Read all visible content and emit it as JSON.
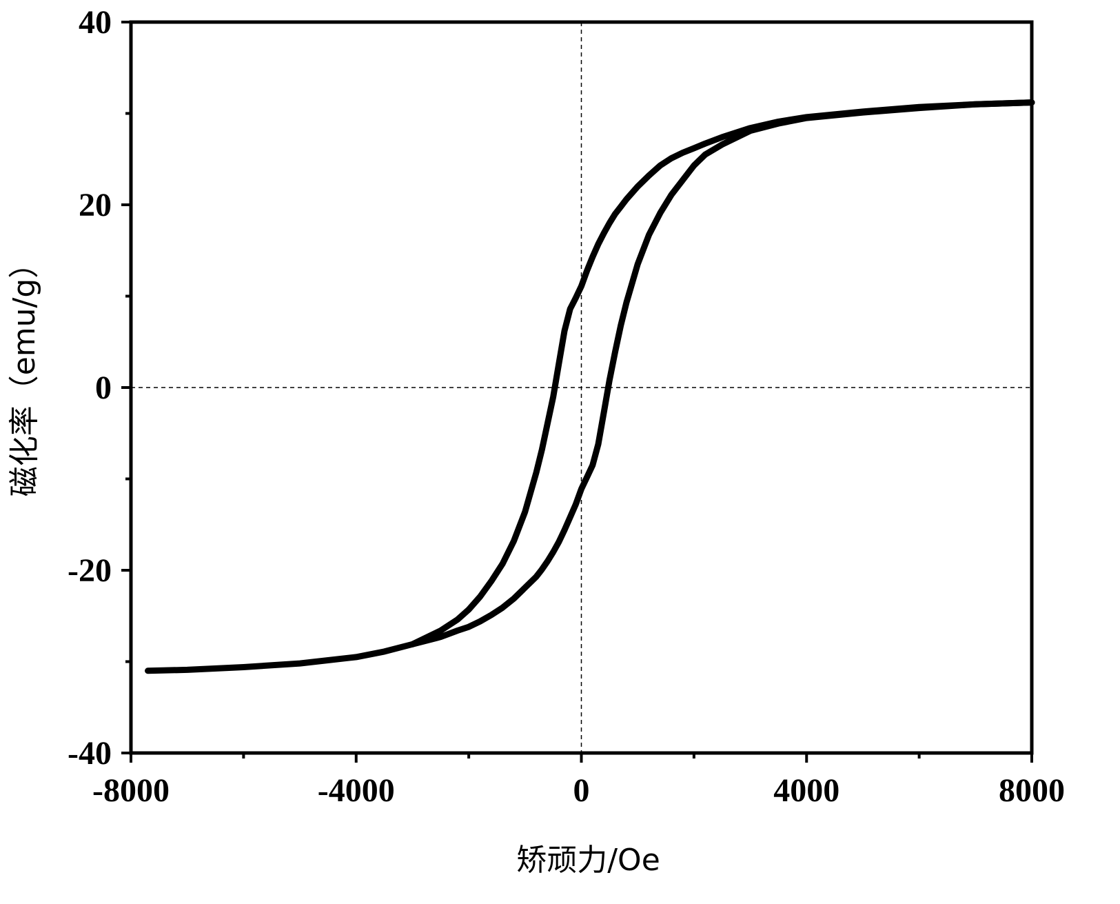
{
  "chart_data": {
    "type": "line",
    "title": "",
    "xlabel": "矫顽力/Oe",
    "ylabel": "磁化率（emu/g）",
    "xlim": [
      -8000,
      8000
    ],
    "ylim": [
      -40,
      40
    ],
    "x_ticks": [
      -8000,
      -4000,
      0,
      4000,
      8000
    ],
    "x_tick_labels": [
      "-8000",
      "-4000",
      "0",
      "4000",
      "8000"
    ],
    "y_ticks": [
      -40,
      -20,
      0,
      20,
      40
    ],
    "y_tick_labels": [
      "-40",
      "-20",
      "0",
      "20",
      "40"
    ],
    "x_minor_ticks": [
      -6000,
      -2000,
      2000,
      6000
    ],
    "y_minor_ticks": [
      -30,
      -10,
      10,
      30
    ],
    "reference_lines": {
      "x": 0,
      "y": 0,
      "style": "dashed"
    },
    "legend": "none",
    "series": [
      {
        "x": [
          -7700,
          -7000,
          -6000,
          -5000,
          -4000,
          -3500,
          -3000,
          -2500,
          -2200,
          -2000,
          -1800,
          -1600,
          -1400,
          -1200,
          -1000,
          -800,
          -700,
          -600,
          -500,
          -400,
          -300,
          -200,
          -100,
          0,
          100,
          200,
          300,
          400,
          500,
          600,
          700,
          800,
          1000,
          1200,
          1400,
          1600,
          1800,
          2000,
          2200,
          2500,
          3000,
          3500,
          4000,
          5000,
          6000,
          7000,
          8000
        ],
        "y": [
          -31.0,
          -30.9,
          -30.6,
          -30.2,
          -29.5,
          -28.9,
          -28.1,
          -26.6,
          -25.4,
          -24.3,
          -22.9,
          -21.2,
          -19.3,
          -16.8,
          -13.6,
          -9.3,
          -6.8,
          -3.9,
          -1.0,
          2.6,
          6.2,
          8.6,
          9.8,
          11.1,
          12.8,
          14.3,
          15.7,
          16.9,
          18.0,
          19.0,
          19.8,
          20.6,
          22.0,
          23.2,
          24.3,
          25.1,
          25.7,
          26.2,
          26.7,
          27.4,
          28.4,
          29.1,
          29.6,
          30.2,
          30.7,
          31.0,
          31.2
        ]
      },
      {
        "x": [
          8000,
          7000,
          6000,
          5000,
          4000,
          3500,
          3000,
          2500,
          2200,
          2000,
          1800,
          1600,
          1400,
          1200,
          1000,
          800,
          700,
          600,
          500,
          400,
          300,
          200,
          100,
          0,
          -100,
          -200,
          -300,
          -400,
          -500,
          -600,
          -700,
          -800,
          -1000,
          -1200,
          -1400,
          -1600,
          -1800,
          -2000,
          -2200,
          -2500,
          -3000
        ],
        "y": [
          31.2,
          31.0,
          30.6,
          30.1,
          29.5,
          28.9,
          28.1,
          26.6,
          25.5,
          24.3,
          22.7,
          21.1,
          19.1,
          16.7,
          13.5,
          9.3,
          6.8,
          3.9,
          0.8,
          -2.7,
          -6.2,
          -8.5,
          -9.8,
          -11.1,
          -12.8,
          -14.2,
          -15.6,
          -16.9,
          -18.0,
          -19.0,
          -19.9,
          -20.7,
          -21.9,
          -23.1,
          -24.1,
          -24.9,
          -25.6,
          -26.2,
          -26.6,
          -27.3,
          -28.1
        ]
      }
    ]
  }
}
